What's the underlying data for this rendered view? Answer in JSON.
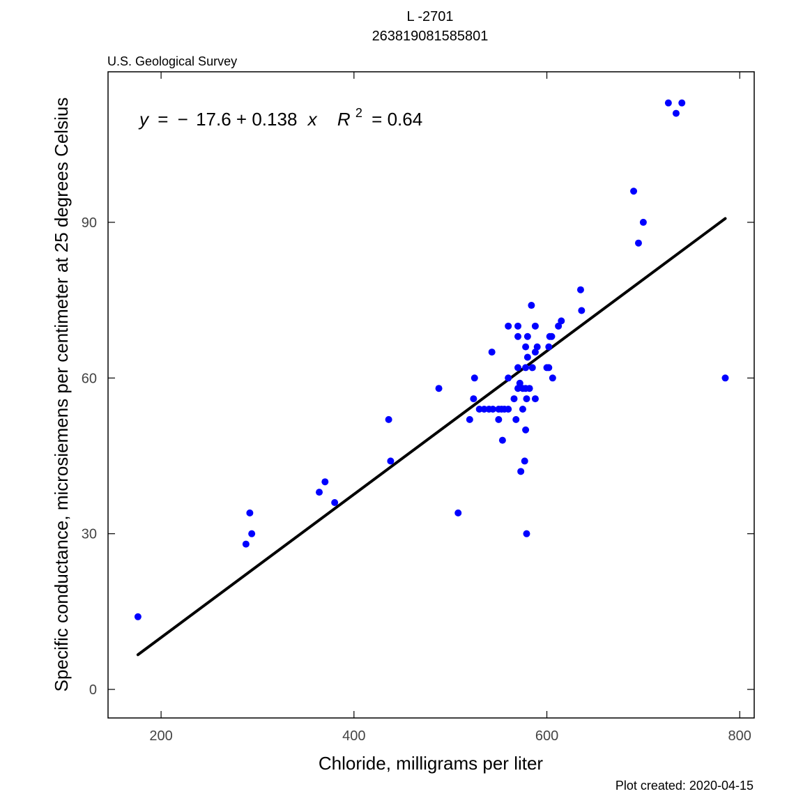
{
  "header": {
    "title_line1": "L -2701",
    "title_line2": "263819081585801",
    "agency": "U.S. Geological Survey",
    "agency_color": "#006400",
    "footer": "Plot created: 2020-04-15"
  },
  "equation": {
    "y": "y",
    "eq": "=",
    "minus": "−",
    "intercept": "17.6",
    "plus": "+",
    "slope": "0.138",
    "x": "x",
    "r": "R",
    "r_exp": "2",
    "r_eq": "= 0.64"
  },
  "chart_data": {
    "type": "scatter",
    "title": "L -2701 263819081585801",
    "xlabel": "Chloride, milligrams per liter",
    "ylabel": "Specific conductance, microsiemens per centimeter at 25 degrees Celsius",
    "xlim": [
      145,
      815
    ],
    "ylim": [
      -5.5,
      119
    ],
    "x_ticks": [
      200,
      400,
      600,
      800
    ],
    "y_ticks": [
      0,
      30,
      60,
      90
    ],
    "grid": false,
    "point_color": "#0000ff",
    "line_color": "#000000",
    "regression": {
      "intercept": -17.6,
      "slope": 0.138,
      "r2": 0.64,
      "x_range": [
        176,
        785
      ]
    },
    "points": [
      [
        176,
        14
      ],
      [
        288,
        28
      ],
      [
        292,
        34
      ],
      [
        294,
        30
      ],
      [
        364,
        38
      ],
      [
        370,
        40
      ],
      [
        380,
        36
      ],
      [
        436,
        52
      ],
      [
        438,
        44
      ],
      [
        488,
        58
      ],
      [
        508,
        34
      ],
      [
        520,
        52
      ],
      [
        524,
        56
      ],
      [
        525,
        60
      ],
      [
        530,
        54
      ],
      [
        535,
        54
      ],
      [
        540,
        54
      ],
      [
        543,
        65
      ],
      [
        544,
        54
      ],
      [
        550,
        52
      ],
      [
        550,
        54
      ],
      [
        553,
        54
      ],
      [
        554,
        48
      ],
      [
        556,
        54
      ],
      [
        560,
        54
      ],
      [
        560,
        60
      ],
      [
        560,
        70
      ],
      [
        566,
        56
      ],
      [
        568,
        52
      ],
      [
        570,
        58
      ],
      [
        570,
        62
      ],
      [
        570,
        68
      ],
      [
        570,
        70
      ],
      [
        572,
        59
      ],
      [
        573,
        42
      ],
      [
        575,
        58
      ],
      [
        575,
        54
      ],
      [
        577,
        44
      ],
      [
        578,
        50
      ],
      [
        578,
        58
      ],
      [
        578,
        62
      ],
      [
        578,
        66
      ],
      [
        579,
        56
      ],
      [
        579,
        30
      ],
      [
        580,
        64
      ],
      [
        580,
        68
      ],
      [
        582,
        58
      ],
      [
        584,
        74
      ],
      [
        585,
        62
      ],
      [
        588,
        56
      ],
      [
        588,
        65
      ],
      [
        588,
        70
      ],
      [
        590,
        66
      ],
      [
        600,
        62
      ],
      [
        602,
        62
      ],
      [
        602,
        66
      ],
      [
        603,
        68
      ],
      [
        605,
        68
      ],
      [
        606,
        60
      ],
      [
        612,
        70
      ],
      [
        615,
        71
      ],
      [
        635,
        77
      ],
      [
        636,
        73
      ],
      [
        690,
        96
      ],
      [
        695,
        86
      ],
      [
        700,
        90
      ],
      [
        726,
        113
      ],
      [
        734,
        111
      ],
      [
        740,
        113
      ],
      [
        785,
        60
      ]
    ]
  }
}
